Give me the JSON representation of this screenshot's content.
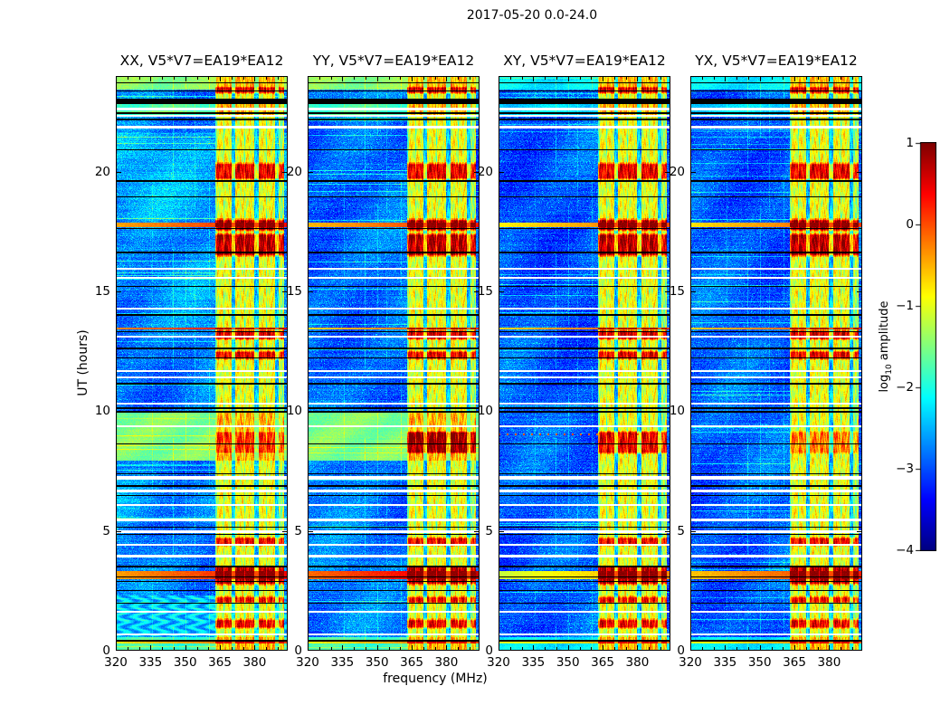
{
  "figure": {
    "suptitle": "2017-05-20 0.0-24.0",
    "xlabel": "frequency (MHz)",
    "ylabel": "UT (hours)",
    "background": "#ffffff",
    "text_color": "#000000"
  },
  "panels": [
    {
      "title": "XX, V5*V7=EA19*EA12",
      "pol": "XX"
    },
    {
      "title": "YY, V5*V7=EA19*EA12",
      "pol": "YY"
    },
    {
      "title": "XY, V5*V7=EA19*EA12",
      "pol": "XY"
    },
    {
      "title": "YX, V5*V7=EA19*EA12",
      "pol": "YX"
    }
  ],
  "axes": {
    "x_tick_labels": [
      "320",
      "335",
      "350",
      "365",
      "380"
    ],
    "x_tick_values": [
      320,
      335,
      350,
      365,
      380
    ],
    "x_range": [
      320,
      394.3
    ],
    "y_tick_labels": [
      "0",
      "5",
      "10",
      "15",
      "20"
    ],
    "y_tick_values": [
      0,
      5,
      10,
      15,
      20
    ],
    "y_range": [
      0,
      24
    ]
  },
  "colorbar": {
    "label_pre": "log",
    "label_sub": "10",
    "label_post": " amplitude",
    "tick_labels": [
      "1",
      "0",
      "−1",
      "−2",
      "−3",
      "−4"
    ],
    "tick_values": [
      1,
      0,
      -1,
      -2,
      -3,
      -4
    ],
    "range": [
      -4,
      1
    ],
    "colormap": "jet"
  },
  "chart_data": {
    "type": "heatmap",
    "title": "2017-05-20 0.0-24.0",
    "subplot_titles": [
      "XX, V5*V7=EA19*EA12",
      "YY, V5*V7=EA19*EA12",
      "XY, V5*V7=EA19*EA12",
      "YX, V5*V7=EA19*EA12"
    ],
    "xlabel": "frequency (MHz)",
    "ylabel": "UT (hours)",
    "value_label": "log10 amplitude",
    "value_range": [
      -4,
      1
    ],
    "freq_range_mhz": [
      320,
      394.3
    ],
    "time_range_hours": [
      0,
      24
    ],
    "features": {
      "panel_base_log10": [
        -2.78,
        -2.82,
        -2.95,
        -2.92
      ],
      "rfi_band": {
        "freq_mhz": [
          363,
          392.7
        ],
        "sub_bands_mhz": [
          [
            363,
            370
          ],
          [
            371.6,
            379.8
          ],
          [
            381.4,
            388.8
          ],
          [
            390,
            392.3
          ]
        ],
        "gap_cols_mhz": [
          [
            370,
            371.6
          ],
          [
            379.8,
            381.4
          ],
          [
            388.8,
            390
          ]
        ],
        "thin_dark_cols_mhz": [
          366.5,
          375.5,
          384.9
        ],
        "baseline_log10": -0.95
      },
      "white_gap_rows_ut": [
        [
          22.62,
          0.1
        ],
        [
          22.34,
          0.08
        ],
        [
          21.86,
          0.12
        ],
        [
          15.95,
          0.1
        ],
        [
          15.57,
          0.08
        ],
        [
          14.28,
          0.08
        ],
        [
          13.12,
          0.08
        ],
        [
          11.68,
          0.1
        ],
        [
          11.42,
          0.08
        ],
        [
          10.32,
          0.1
        ],
        [
          9.38,
          0.07
        ],
        [
          7.22,
          0.12
        ],
        [
          6.67,
          0.1
        ],
        [
          6.08,
          0.08
        ],
        [
          5.45,
          0.1
        ],
        [
          4.97,
          0.08
        ],
        [
          4.42,
          0.08
        ],
        [
          3.95,
          0.08
        ],
        [
          1.62,
          0.08
        ],
        [
          0.68,
          0.1
        ]
      ],
      "black_rows_ut": [
        [
          23.72,
          0.035
        ],
        [
          23.55,
          0.03
        ],
        [
          23.38,
          0.06
        ],
        [
          22.95,
          0.22
        ],
        [
          22.45,
          0.05
        ],
        [
          22.18,
          0.05
        ],
        [
          20.92,
          0.06
        ],
        [
          19.62,
          0.06
        ],
        [
          18.95,
          0.06
        ],
        [
          17.62,
          0.05
        ],
        [
          16.62,
          0.06
        ],
        [
          15.22,
          0.05
        ],
        [
          14.02,
          0.05
        ],
        [
          13.32,
          0.05
        ],
        [
          12.62,
          0.06
        ],
        [
          12.22,
          0.05
        ],
        [
          11.15,
          0.05
        ],
        [
          10.12,
          0.06
        ],
        [
          9.98,
          0.05
        ],
        [
          8.62,
          0.04
        ],
        [
          7.38,
          0.05
        ],
        [
          6.88,
          0.05
        ],
        [
          6.48,
          0.05
        ],
        [
          5.15,
          0.05
        ],
        [
          4.85,
          0.04
        ],
        [
          3.52,
          0.05
        ],
        [
          3.08,
          0.04
        ],
        [
          2.88,
          0.05
        ],
        [
          2.52,
          0.05
        ],
        [
          1.98,
          0.04
        ],
        [
          0.42,
          0.05
        ]
      ],
      "broadband_bursts": [
        {
          "ut": 17.78,
          "h": 0.22,
          "out_log10": [
            -0.2,
            -0.3,
            -0.6,
            -0.5
          ],
          "in_log10": 0.92
        },
        {
          "ut": 3.15,
          "h": 0.35,
          "out_log10": [
            -0.15,
            0.1,
            -0.9,
            -0.35
          ],
          "in_log10": 0.92
        },
        {
          "ut": 13.45,
          "h": 0.07,
          "out_log10": [
            -0.05,
            -0.45,
            -0.45,
            -0.4
          ],
          "in_log10": 0.8
        },
        {
          "ut": 0.35,
          "h": 0.06,
          "out_log10": [
            -0.5,
            -0.6,
            -0.8,
            -0.7
          ],
          "in_log10": 0.55
        }
      ],
      "band_bursts": [
        {
          "ut": [
            23.28,
            23.55
          ],
          "log10": 0.55
        },
        {
          "ut": [
            19.7,
            20.35
          ],
          "log10": 0.5
        },
        {
          "ut": [
            17.55,
            18.0
          ],
          "log10": 0.85
        },
        {
          "ut": [
            16.5,
            17.4
          ],
          "log10": 0.75
        },
        {
          "ut": [
            13.0,
            13.38
          ],
          "log10": 0.6
        },
        {
          "ut": [
            12.18,
            12.5
          ],
          "log10": 0.5
        },
        {
          "ut": [
            8.25,
            9.15
          ],
          "log10": 0.55,
          "panel_factors": [
            0.75,
            1.25,
            0.95,
            0.5
          ]
        },
        {
          "ut": [
            4.4,
            4.72
          ],
          "log10": 0.45
        },
        {
          "ut": [
            2.78,
            3.5
          ],
          "log10": 0.8
        },
        {
          "ut": [
            2.0,
            2.25
          ],
          "log10": 0.4
        },
        {
          "ut": [
            0.95,
            1.3
          ],
          "log10": 0.45
        }
      ],
      "green_bands": [
        {
          "ut": [
            23.42,
            24.0
          ],
          "log10": -1.45,
          "panels": [
            0,
            1
          ]
        },
        {
          "ut": [
            23.42,
            24.0
          ],
          "log10": -2.2,
          "panels": [
            2,
            3
          ]
        },
        {
          "ut": [
            22.3,
            22.92
          ],
          "log10": -1.75,
          "panels": [
            0,
            1
          ]
        },
        {
          "ut": [
            22.3,
            22.92
          ],
          "log10": -2.3,
          "panels": [
            2,
            3
          ]
        },
        {
          "ut": [
            7.95,
            10.02
          ],
          "log10": -1.5,
          "panels": [
            0,
            1
          ]
        },
        {
          "ut": [
            0.0,
            0.55
          ],
          "log10": -1.8,
          "panels": [
            0,
            1
          ]
        },
        {
          "ut": [
            0.0,
            0.55
          ],
          "log10": -2.2,
          "panels": [
            2,
            3
          ]
        }
      ],
      "herringbone": {
        "ut": [
          0.6,
          2.3
        ],
        "panels": [
          0
        ],
        "log10": -2.42
      },
      "dotted_row": {
        "panel": 2,
        "ut": 9.03,
        "period_mhz": 3.5,
        "log10": -0.25
      },
      "vertical_lines": [
        {
          "mhz": 335.6,
          "amp": 0.3
        },
        {
          "mhz": 344.6,
          "amp": 0.5
        },
        {
          "mhz": 350.1,
          "amp": 0.4
        },
        {
          "mhz": 354.0,
          "amp": 0.35
        },
        {
          "mhz": 360.3,
          "amp": 0.4
        }
      ],
      "panel_patches": [
        [
          {
            "ut": [
              18.0,
              21.6
            ],
            "dv": 0.22
          },
          {
            "ut": [
              13.2,
              16.1
            ],
            "dv": 0.1
          },
          {
            "ut": [
              5.4,
              7.3
            ],
            "dv": 0.15
          }
        ],
        [
          {
            "ut": [
              17.9,
              22.2
            ],
            "dv": -0.12
          }
        ],
        [],
        []
      ]
    }
  }
}
